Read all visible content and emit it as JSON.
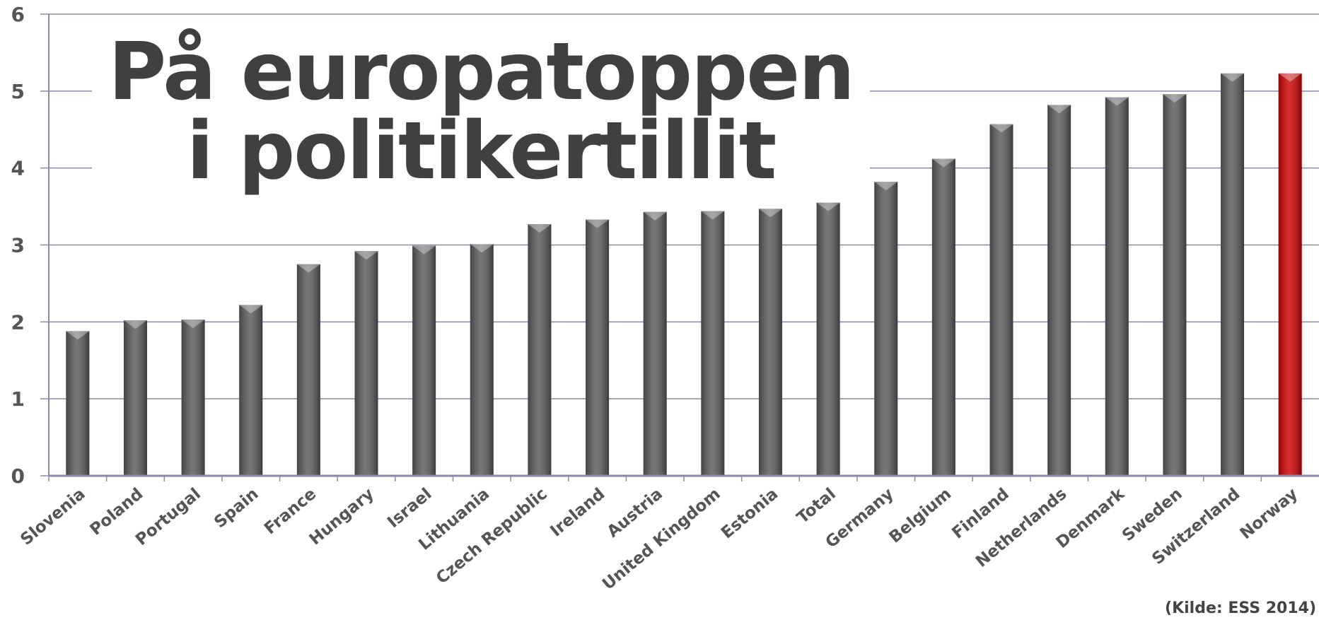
{
  "chart_data": {
    "type": "bar",
    "title": "På europatoppen i politikertillit",
    "categories": [
      "Slovenia",
      "Poland",
      "Portugal",
      "Spain",
      "France",
      "Hungary",
      "Israel",
      "Lithuania",
      "Czech Republic",
      "Ireland",
      "Austria",
      "United Kingdom",
      "Estonia",
      "Total",
      "Germany",
      "Belgium",
      "Finland",
      "Netherlands",
      "Denmark",
      "Sweden",
      "Switzerland",
      "Norway"
    ],
    "values": [
      1.88,
      2.02,
      2.03,
      2.22,
      2.75,
      2.92,
      2.99,
      3.01,
      3.27,
      3.33,
      3.43,
      3.44,
      3.47,
      3.55,
      3.82,
      4.12,
      4.57,
      4.82,
      4.92,
      4.96,
      5.23,
      5.23
    ],
    "colors": [
      "#5a5a5a",
      "#5a5a5a",
      "#5a5a5a",
      "#5a5a5a",
      "#5a5a5a",
      "#5a5a5a",
      "#5a5a5a",
      "#5a5a5a",
      "#5a5a5a",
      "#5a5a5a",
      "#5a5a5a",
      "#5a5a5a",
      "#5a5a5a",
      "#5a5a5a",
      "#5a5a5a",
      "#5a5a5a",
      "#5a5a5a",
      "#5a5a5a",
      "#5a5a5a",
      "#5a5a5a",
      "#5a5a5a",
      "#cc0000"
    ],
    "ylim": [
      0,
      6
    ],
    "yticks": [
      0,
      1,
      2,
      3,
      4,
      5,
      6
    ],
    "grid": true,
    "annotation": "(Kilde: ESS 2014)"
  }
}
